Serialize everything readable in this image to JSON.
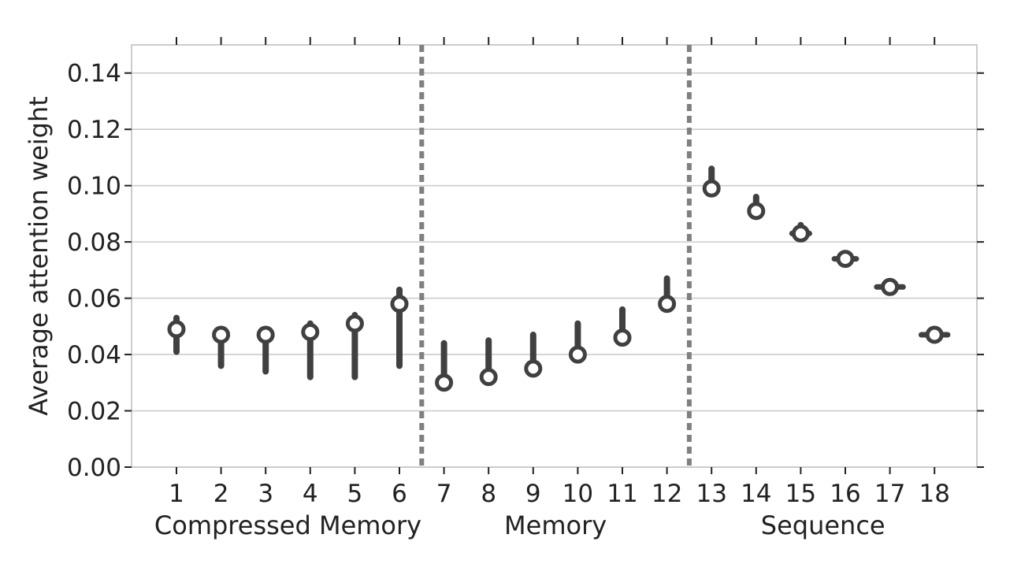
{
  "chart_data": {
    "type": "scatter",
    "title": "",
    "xlabel": "",
    "ylabel": "Average attention weight",
    "ylim": [
      0,
      0.15
    ],
    "yticks": [
      0.0,
      0.02,
      0.04,
      0.06,
      0.08,
      0.1,
      0.12,
      0.14
    ],
    "ytick_labels": [
      "0.00",
      "0.02",
      "0.04",
      "0.06",
      "0.08",
      "0.10",
      "0.12",
      "0.14"
    ],
    "grid": "horizontal",
    "legend": "none",
    "x": [
      1,
      2,
      3,
      4,
      5,
      6,
      7,
      8,
      9,
      10,
      11,
      12,
      13,
      14,
      15,
      16,
      17,
      18
    ],
    "xtick_labels": [
      "1",
      "2",
      "3",
      "4",
      "5",
      "6",
      "7",
      "8",
      "9",
      "10",
      "11",
      "12",
      "13",
      "14",
      "15",
      "16",
      "17",
      "18"
    ],
    "series": [
      {
        "values": [
          0.049,
          0.047,
          0.047,
          0.048,
          0.051,
          0.058,
          0.03,
          0.032,
          0.035,
          0.04,
          0.046,
          0.058,
          0.099,
          0.091,
          0.083,
          0.074,
          0.064,
          0.047
        ],
        "range_low": [
          0.041,
          0.036,
          0.034,
          0.032,
          0.032,
          0.036,
          0.029,
          0.031,
          0.034,
          0.039,
          0.045,
          0.057,
          0.097,
          0.09,
          0.082,
          0.074,
          0.064,
          0.047
        ],
        "range_high": [
          0.053,
          0.049,
          0.048,
          0.051,
          0.054,
          0.063,
          0.044,
          0.045,
          0.047,
          0.051,
          0.056,
          0.067,
          0.106,
          0.096,
          0.086,
          0.075,
          0.064,
          0.047
        ],
        "cap_width": [
          0,
          0,
          0,
          0,
          0,
          0,
          0,
          0,
          0,
          0,
          0,
          0,
          0,
          0,
          0.25,
          0.35,
          0.45,
          0.45
        ]
      }
    ],
    "dividers": [
      6.5,
      12.5
    ],
    "groups": [
      {
        "label": "Compressed Memory",
        "center": 3.5
      },
      {
        "label": "Memory",
        "center": 9.5
      },
      {
        "label": "Sequence",
        "center": 15.5
      }
    ],
    "colors": {
      "marker": "#404040",
      "divider": "#808080",
      "grid": "#cccccc",
      "frame": "#cccccc",
      "tick": "#222222"
    }
  }
}
